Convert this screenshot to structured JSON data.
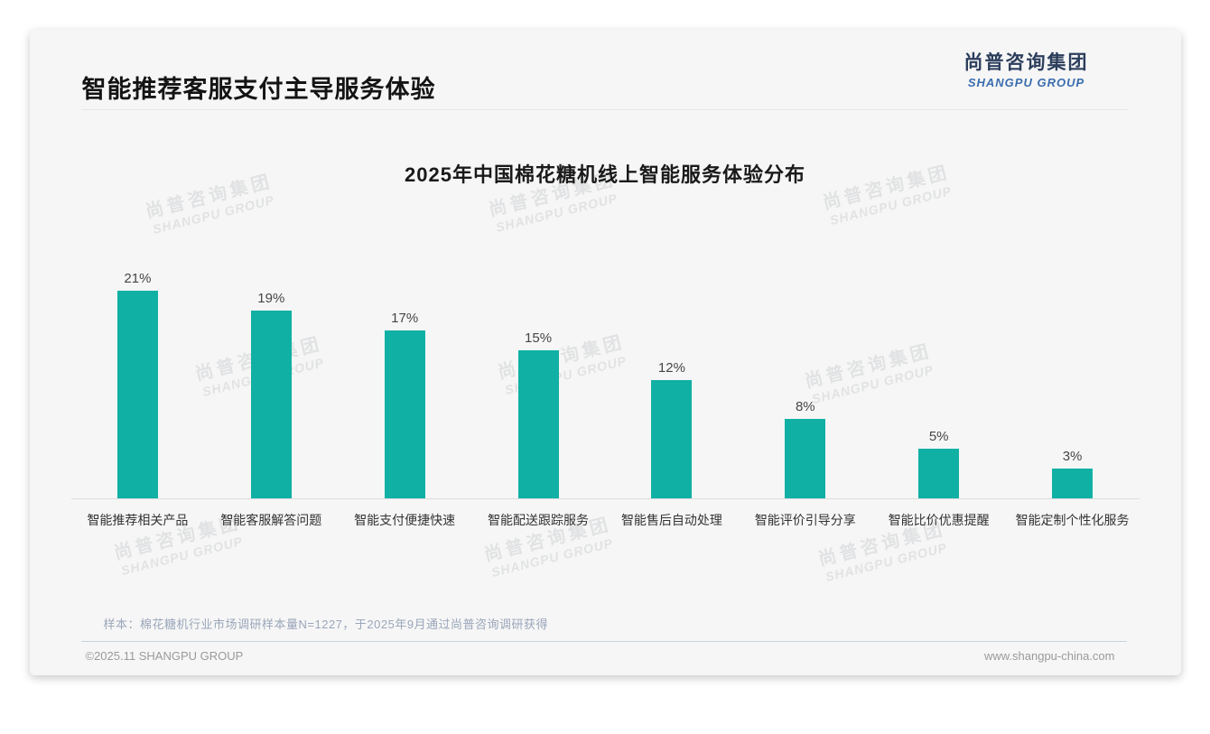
{
  "header": {
    "title": "智能推荐客服支付主导服务体验"
  },
  "logo": {
    "cn": "尚普咨询集团",
    "en": "SHANGPU GROUP"
  },
  "watermark": {
    "cn": "尚普咨询集团",
    "en": "SHANGPU GROUP"
  },
  "chart_data": {
    "type": "bar",
    "title": "2025年中国棉花糖机线上智能服务体验分布",
    "categories": [
      "智能推荐相关产品",
      "智能客服解答问题",
      "智能支付便捷快速",
      "智能配送跟踪服务",
      "智能售后自动处理",
      "智能评价引导分享",
      "智能比价优惠提醒",
      "智能定制个性化服务"
    ],
    "values": [
      21,
      19,
      17,
      15,
      12,
      8,
      5,
      3
    ],
    "unit": "%",
    "bar_color": "#11b0a5",
    "value_label_color": "#464646",
    "ylim": [
      0,
      23
    ],
    "grid": false,
    "legend": false,
    "value_labels": true,
    "xlabel": "",
    "ylabel": ""
  },
  "note": "样本：棉花糖机行业市场调研样本量N=1227，于2025年9月通过尚普咨询调研获得",
  "footer": {
    "left": "©2025.11 SHANGPU GROUP",
    "right": "www.shangpu-china.com"
  }
}
